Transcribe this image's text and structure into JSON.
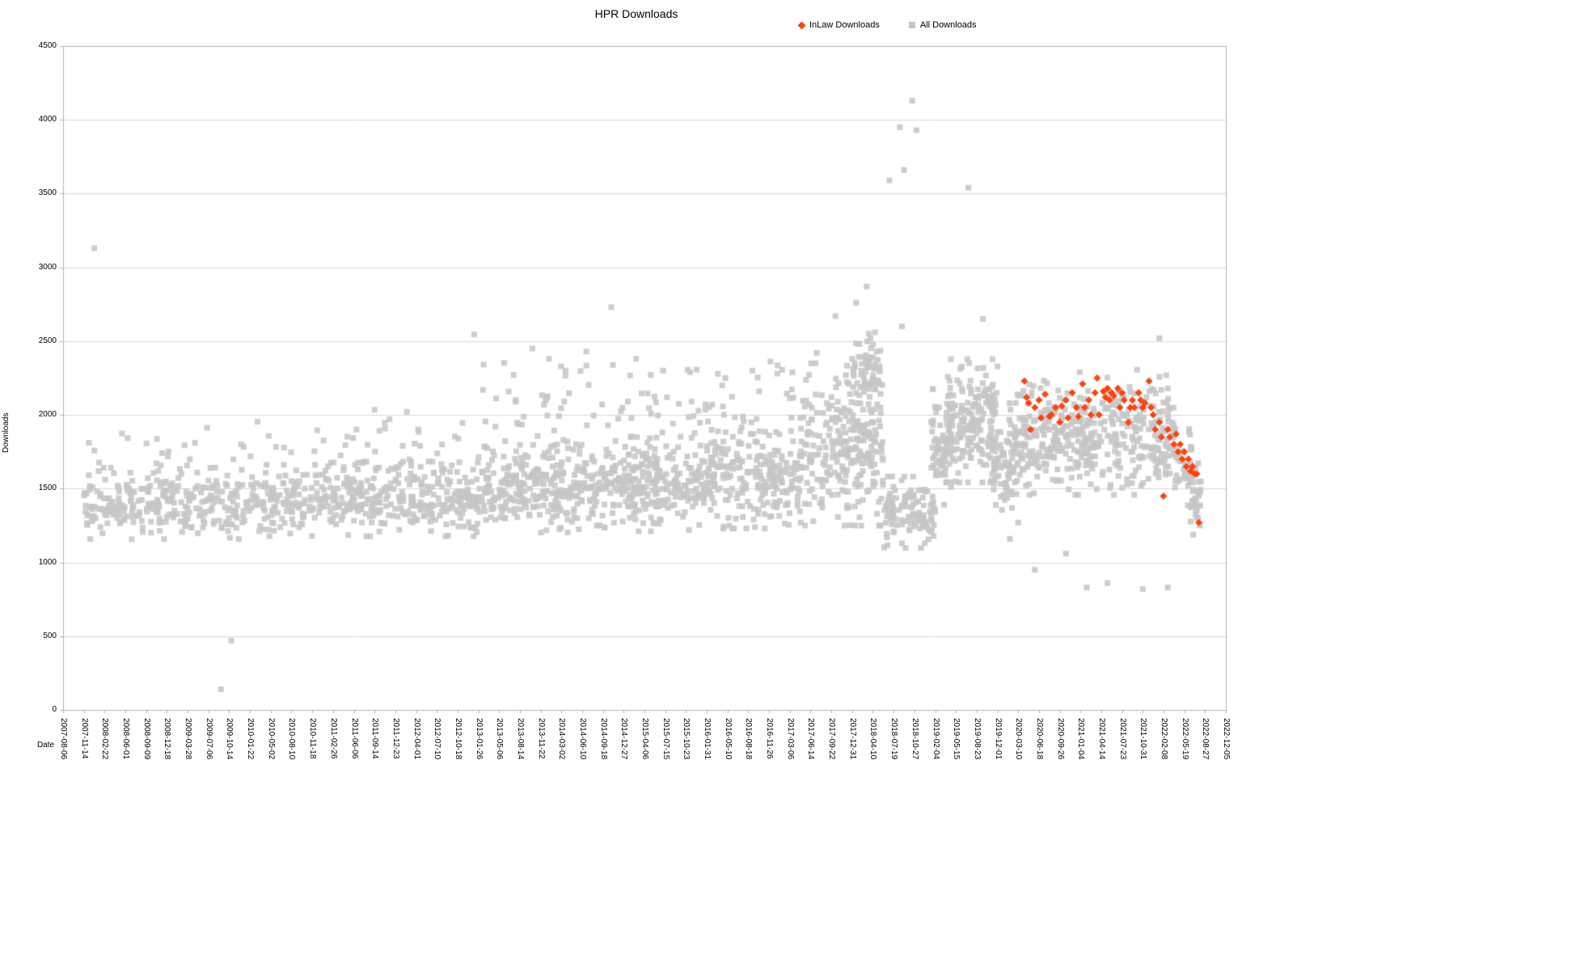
{
  "colors": {
    "background": "#ffffff",
    "grid": "#d9d9d9",
    "axis": "#b3b3b3",
    "text": "#000000",
    "inlaw": "#ff420e",
    "all": "#c6c6c6"
  },
  "chart_data": {
    "type": "scatter",
    "title": "HPR Downloads",
    "xlabel": "Date",
    "ylabel": "Downloads",
    "ylim": [
      0,
      4500
    ],
    "y_ticks": [
      0,
      500,
      1000,
      1500,
      2000,
      2500,
      3000,
      3500,
      4000,
      4500
    ],
    "grid": "horizontal",
    "legend_position": "top",
    "x_tick_labels": [
      "2007-08-06",
      "2007-11-14",
      "2008-02-22",
      "2008-06-01",
      "2008-09-09",
      "2008-12-18",
      "2009-03-28",
      "2009-07-06",
      "2009-10-14",
      "2010-01-22",
      "2010-05-02",
      "2010-08-10",
      "2010-11-18",
      "2011-02-26",
      "2011-06-06",
      "2011-09-14",
      "2011-12-23",
      "2012-04-01",
      "2012-07-10",
      "2012-10-18",
      "2013-01-26",
      "2013-05-06",
      "2013-08-14",
      "2013-11-22",
      "2014-03-02",
      "2014-06-10",
      "2014-09-18",
      "2014-12-27",
      "2015-04-06",
      "2015-07-15",
      "2015-10-23",
      "2016-01-31",
      "2016-05-10",
      "2016-08-18",
      "2016-11-26",
      "2017-03-06",
      "2017-06-14",
      "2017-09-22",
      "2017-12-31",
      "2018-04-10",
      "2018-07-19",
      "2018-10-27",
      "2019-02-04",
      "2019-05-15",
      "2019-08-23",
      "2019-12-01",
      "2020-03-10",
      "2020-06-18",
      "2020-09-26",
      "2021-01-04",
      "2021-04-14",
      "2021-07-23",
      "2021-10-31",
      "2022-02-08",
      "2022-05-19",
      "2022-08-27",
      "2022-12-05"
    ],
    "x_unit_note": "x values below are in tick-index units (0 = 2007-08-06 ... 56 = 2022-12-05, ticks every 100 days)",
    "clusters_format": [
      "x_start",
      "x_end",
      "y_mean",
      "y_sd",
      "count"
    ],
    "series": [
      {
        "name": "InLaw Downloads",
        "marker": "diamond",
        "color": "#ff420e",
        "clusters": [],
        "points": [
          [
            46.3,
            2230
          ],
          [
            46.4,
            2120
          ],
          [
            46.5,
            2080
          ],
          [
            46.6,
            1900
          ],
          [
            46.8,
            2050
          ],
          [
            47.0,
            2100
          ],
          [
            47.1,
            1980
          ],
          [
            47.3,
            2140
          ],
          [
            47.5,
            1990
          ],
          [
            47.6,
            2000
          ],
          [
            47.8,
            2050
          ],
          [
            48.0,
            1950
          ],
          [
            48.1,
            2060
          ],
          [
            48.3,
            2100
          ],
          [
            48.4,
            1980
          ],
          [
            48.6,
            2150
          ],
          [
            48.8,
            2050
          ],
          [
            48.9,
            1990
          ],
          [
            49.1,
            2210
          ],
          [
            49.2,
            2050
          ],
          [
            49.4,
            2100
          ],
          [
            49.5,
            2000
          ],
          [
            49.7,
            2150
          ],
          [
            49.8,
            2250
          ],
          [
            49.9,
            2000
          ],
          [
            50.1,
            2160
          ],
          [
            50.2,
            2120
          ],
          [
            50.3,
            2180
          ],
          [
            50.4,
            2100
          ],
          [
            50.5,
            2150
          ],
          [
            50.6,
            2130
          ],
          [
            50.8,
            2180
          ],
          [
            50.9,
            2050
          ],
          [
            51.0,
            2150
          ],
          [
            51.1,
            2100
          ],
          [
            51.3,
            1950
          ],
          [
            51.4,
            2050
          ],
          [
            51.5,
            2100
          ],
          [
            51.6,
            2050
          ],
          [
            51.8,
            2150
          ],
          [
            51.9,
            2100
          ],
          [
            52.0,
            2050
          ],
          [
            52.1,
            2080
          ],
          [
            52.3,
            2230
          ],
          [
            52.4,
            2050
          ],
          [
            52.5,
            2000
          ],
          [
            52.6,
            1900
          ],
          [
            52.8,
            1950
          ],
          [
            52.9,
            1850
          ],
          [
            53.0,
            1450
          ],
          [
            53.2,
            1900
          ],
          [
            53.3,
            1850
          ],
          [
            53.5,
            1800
          ],
          [
            53.6,
            1870
          ],
          [
            53.7,
            1750
          ],
          [
            53.8,
            1800
          ],
          [
            53.9,
            1700
          ],
          [
            54.0,
            1750
          ],
          [
            54.1,
            1650
          ],
          [
            54.2,
            1700
          ],
          [
            54.3,
            1620
          ],
          [
            54.4,
            1650
          ],
          [
            54.5,
            1600
          ],
          [
            54.6,
            1600
          ],
          [
            54.7,
            1270
          ]
        ]
      },
      {
        "name": "All Downloads",
        "marker": "square",
        "color": "#c6c6c6",
        "clusters": [
          [
            1.0,
            9.2,
            1400,
            110,
            280
          ],
          [
            1.0,
            9.2,
            1760,
            110,
            22
          ],
          [
            9.2,
            13.0,
            1420,
            110,
            140
          ],
          [
            9.2,
            13.0,
            1760,
            120,
            12
          ],
          [
            13.0,
            20.0,
            1430,
            115,
            300
          ],
          [
            13.0,
            20.0,
            1820,
            140,
            30
          ],
          [
            20.0,
            26.0,
            1500,
            135,
            300
          ],
          [
            20.0,
            26.0,
            1990,
            190,
            45
          ],
          [
            26.0,
            31.0,
            1530,
            145,
            260
          ],
          [
            26.0,
            31.0,
            2030,
            200,
            40
          ],
          [
            31.0,
            35.5,
            1560,
            150,
            230
          ],
          [
            31.0,
            35.5,
            2020,
            190,
            35
          ],
          [
            35.5,
            39.5,
            1800,
            250,
            280
          ],
          [
            38.0,
            39.4,
            2320,
            110,
            60
          ],
          [
            39.5,
            42.0,
            1340,
            110,
            120
          ],
          [
            41.8,
            42.8,
            1780,
            180,
            70
          ],
          [
            42.5,
            45.0,
            1960,
            190,
            200
          ],
          [
            44.8,
            45.8,
            1620,
            120,
            55
          ],
          [
            45.5,
            53.5,
            1810,
            160,
            430
          ],
          [
            46.5,
            53.3,
            2130,
            80,
            45
          ],
          [
            53.5,
            54.4,
            1640,
            120,
            45
          ],
          [
            54.3,
            54.8,
            1430,
            110,
            28
          ]
        ],
        "points": [
          [
            1.5,
            3130
          ],
          [
            7.6,
            140
          ],
          [
            8.1,
            470
          ],
          [
            19.8,
            2545
          ],
          [
            21.8,
            2100
          ],
          [
            22.6,
            2450
          ],
          [
            23.4,
            2380
          ],
          [
            24.2,
            2300
          ],
          [
            25.2,
            2430
          ],
          [
            26.4,
            2730
          ],
          [
            27.6,
            2380
          ],
          [
            28.9,
            2300
          ],
          [
            30.2,
            2290
          ],
          [
            31.9,
            2250
          ],
          [
            33.2,
            2300
          ],
          [
            34.4,
            2280
          ],
          [
            36.3,
            2420
          ],
          [
            37.2,
            2670
          ],
          [
            38.2,
            2760
          ],
          [
            38.7,
            2870
          ],
          [
            39.1,
            2560
          ],
          [
            39.8,
            3590
          ],
          [
            40.3,
            3950
          ],
          [
            40.4,
            2600
          ],
          [
            40.5,
            3660
          ],
          [
            40.9,
            4130
          ],
          [
            41.1,
            3930
          ],
          [
            41.5,
            1130
          ],
          [
            43.6,
            3540
          ],
          [
            44.3,
            2650
          ],
          [
            45.6,
            1160
          ],
          [
            46.0,
            1270
          ],
          [
            46.8,
            950
          ],
          [
            48.3,
            1060
          ],
          [
            49.3,
            830
          ],
          [
            50.3,
            860
          ],
          [
            52.0,
            820
          ],
          [
            52.8,
            2520
          ],
          [
            53.2,
            830
          ],
          [
            54.6,
            1300
          ],
          [
            54.75,
            1250
          ]
        ]
      }
    ]
  }
}
